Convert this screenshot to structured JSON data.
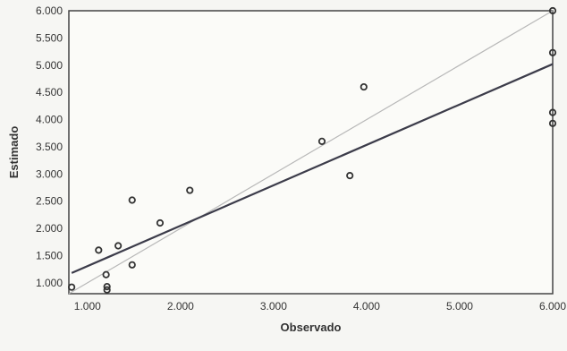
{
  "chart_data": {
    "type": "scatter",
    "title": "",
    "xlabel": "Observado",
    "ylabel": "Estimado",
    "xlim": [
      0.8,
      6.0
    ],
    "ylim": [
      0.8,
      6.0
    ],
    "x_ticks": [
      1.0,
      2.0,
      3.0,
      4.0,
      5.0,
      6.0
    ],
    "x_tick_labels": [
      "1.000",
      "2.000",
      "3.000",
      "4.000",
      "5.000",
      "6.000"
    ],
    "y_ticks": [
      1.0,
      1.5,
      2.0,
      2.5,
      3.0,
      3.5,
      4.0,
      4.5,
      5.0,
      5.5,
      6.0
    ],
    "y_tick_labels": [
      "1.000",
      "1.500",
      "2.000",
      "2.500",
      "3.000",
      "3.500",
      "4.000",
      "4.500",
      "5.000",
      "5.500",
      "6.000"
    ],
    "grid": true,
    "points": [
      {
        "x": 0.83,
        "y": 0.92
      },
      {
        "x": 1.12,
        "y": 1.6
      },
      {
        "x": 1.2,
        "y": 1.15
      },
      {
        "x": 1.21,
        "y": 0.93
      },
      {
        "x": 1.21,
        "y": 0.87
      },
      {
        "x": 1.33,
        "y": 1.68
      },
      {
        "x": 1.48,
        "y": 1.33
      },
      {
        "x": 1.48,
        "y": 2.52
      },
      {
        "x": 1.78,
        "y": 2.1
      },
      {
        "x": 2.1,
        "y": 2.7
      },
      {
        "x": 3.52,
        "y": 3.6
      },
      {
        "x": 3.82,
        "y": 2.97
      },
      {
        "x": 3.97,
        "y": 4.6
      },
      {
        "x": 6.0,
        "y": 6.0
      },
      {
        "x": 6.0,
        "y": 5.23
      },
      {
        "x": 6.0,
        "y": 4.13
      },
      {
        "x": 6.0,
        "y": 3.93
      }
    ],
    "regression_line": {
      "x": [
        0.83,
        6.0
      ],
      "y": [
        1.18,
        5.02
      ]
    },
    "reference_line": {
      "x": [
        0.8,
        6.0
      ],
      "y": [
        0.8,
        6.0
      ]
    },
    "colors": {
      "regression": "#3c3c4a",
      "reference": "#b8b8b8",
      "points": "#333333",
      "grid": "#9a9a9a",
      "frame": "#444444"
    }
  }
}
